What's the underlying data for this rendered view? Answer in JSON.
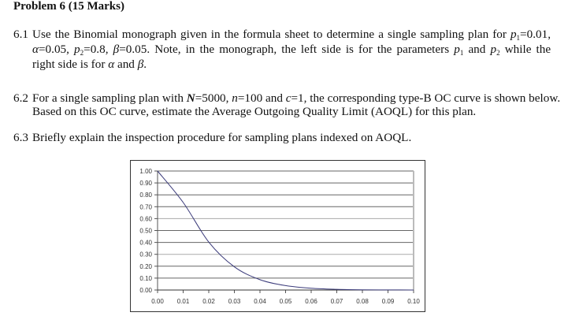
{
  "header": {
    "title": "Problem 6 (15 Marks)"
  },
  "questions": [
    {
      "number": "6.1",
      "lines": [
        "Use the Binomial monograph given in the formula sheet to determine a single sampling plan for",
        "=0.05,",
        "=0.8,",
        "=0.05. Note, in the monograph, the left side is for the parameters",
        "and",
        "while the",
        "right side is for",
        "and"
      ],
      "symbols": {
        "p1": "p",
        "p1_sub": "1",
        "p1_value": "=0.01,",
        "alpha": "α",
        "p2": "p",
        "p2_sub": "2",
        "beta": "β"
      }
    },
    {
      "number": "6.2",
      "line1_a": "For a single sampling plan with ",
      "N": "N",
      "line1_b": "=5000, ",
      "n": "n",
      "line1_c": "=100 and ",
      "c": "c",
      "line1_d": "=1, the corresponding type-B OC curve is shown below.",
      "line2": "Based on this OC curve, estimate the Average Outgoing Quality Limit (AOQL) for this plan."
    },
    {
      "number": "6.3",
      "line1": "Briefly explain the inspection procedure for sampling plans indexed on AOQL."
    }
  ],
  "chart_data": {
    "type": "line",
    "title": "",
    "xlabel": "",
    "ylabel": "",
    "x": [
      0.0,
      0.01,
      0.02,
      0.03,
      0.04,
      0.05,
      0.06,
      0.07,
      0.08,
      0.09,
      0.1
    ],
    "x_tick_labels": [
      "0.00",
      "0.01",
      "0.02",
      "0.03",
      "0.04",
      "0.05",
      "0.06",
      "0.07",
      "0.08",
      "0.09",
      "0.10"
    ],
    "y_tick_labels": [
      "1.00",
      "0.90",
      "0.80",
      "0.70",
      "0.60",
      "0.50",
      "0.40",
      "0.30",
      "0.20",
      "0.10",
      "0.00"
    ],
    "series": [
      {
        "name": "OC curve (n=100, c=1)",
        "color": "#3a3a7a",
        "values": [
          1.0,
          0.736,
          0.403,
          0.195,
          0.087,
          0.037,
          0.015,
          0.006,
          0.002,
          0.001,
          0.0
        ]
      }
    ],
    "xlim": [
      0.0,
      0.1
    ],
    "ylim": [
      0.0,
      1.0
    ],
    "grid": true,
    "legend": "none"
  }
}
